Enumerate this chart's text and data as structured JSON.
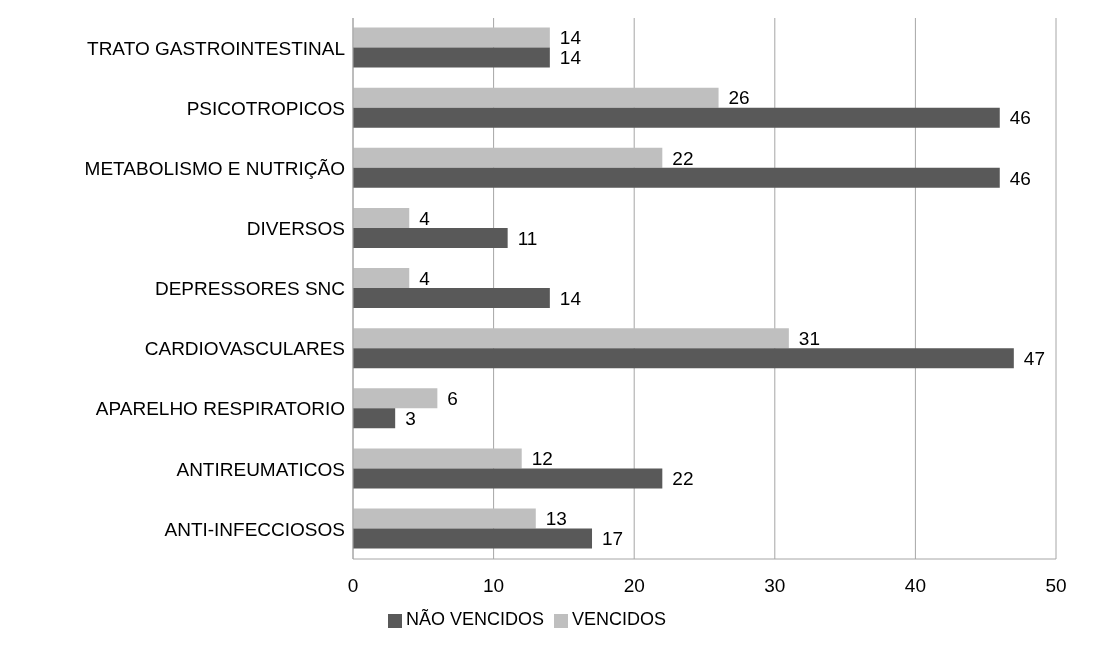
{
  "chart_data": {
    "type": "bar",
    "orientation": "horizontal",
    "categories": [
      "TRATO GASTROINTESTINAL",
      "PSICOTROPICOS",
      "METABOLISMO E NUTRIÇÃO",
      "DIVERSOS",
      "DEPRESSORES  SNC",
      "CARDIOVASCULARES",
      "APARELHO RESPIRATORIO",
      "ANTIREUMATICOS",
      "ANTI-INFECCIOSOS"
    ],
    "series": [
      {
        "name": "VENCIDOS",
        "color": "#bfbfbf",
        "values": [
          14,
          26,
          22,
          4,
          4,
          31,
          6,
          12,
          13
        ]
      },
      {
        "name": "NÃO VENCIDOS",
        "color": "#595959",
        "values": [
          14,
          46,
          46,
          11,
          14,
          47,
          3,
          22,
          17
        ]
      }
    ],
    "xlim": [
      0,
      50
    ],
    "xticks": [
      0,
      10,
      20,
      30,
      40,
      50
    ],
    "grid": "x",
    "legend": "bottom",
    "data_labels": true
  }
}
